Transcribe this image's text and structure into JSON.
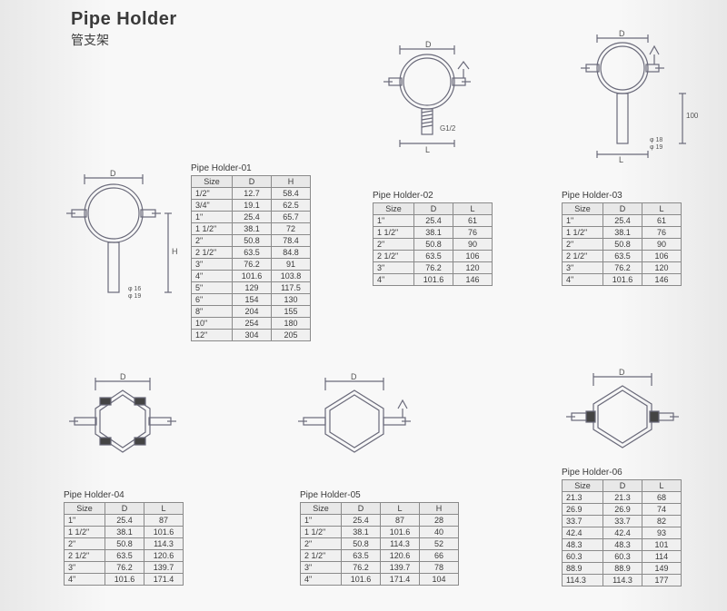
{
  "title_en": "Pipe Holder",
  "title_cn": "管支架",
  "diagrams": {
    "d_top_mid": {
      "label_D": "D",
      "label_L": "L",
      "label_G": "G1/2"
    },
    "d_top_right": {
      "label_D": "D",
      "label_L": "L",
      "label_100": "100",
      "label_phi1": "φ 18",
      "label_phi2": "φ 19"
    },
    "d_left": {
      "label_D": "D",
      "label_H": "H",
      "label_phi1": "φ 16",
      "label_phi2": "φ 19"
    },
    "d_hex_left": {
      "label_D": "D"
    },
    "d_hex_mid": {
      "label_D": "D"
    },
    "d_hex_right": {
      "label_D": "D"
    }
  },
  "tables": {
    "t01": {
      "title": "Pipe Holder-01",
      "columns": [
        "Size",
        "D",
        "H"
      ],
      "rows": [
        [
          "1/2\"",
          "12.7",
          "58.4"
        ],
        [
          "3/4\"",
          "19.1",
          "62.5"
        ],
        [
          "1\"",
          "25.4",
          "65.7"
        ],
        [
          "1 1/2\"",
          "38.1",
          "72"
        ],
        [
          "2\"",
          "50.8",
          "78.4"
        ],
        [
          "2 1/2\"",
          "63.5",
          "84.8"
        ],
        [
          "3\"",
          "76.2",
          "91"
        ],
        [
          "4\"",
          "101.6",
          "103.8"
        ],
        [
          "5\"",
          "129",
          "117.5"
        ],
        [
          "6\"",
          "154",
          "130"
        ],
        [
          "8\"",
          "204",
          "155"
        ],
        [
          "10\"",
          "254",
          "180"
        ],
        [
          "12\"",
          "304",
          "205"
        ]
      ]
    },
    "t02": {
      "title": "Pipe Holder-02",
      "columns": [
        "Size",
        "D",
        "L"
      ],
      "rows": [
        [
          "1\"",
          "25.4",
          "61"
        ],
        [
          "1 1/2\"",
          "38.1",
          "76"
        ],
        [
          "2\"",
          "50.8",
          "90"
        ],
        [
          "2 1/2\"",
          "63.5",
          "106"
        ],
        [
          "3\"",
          "76.2",
          "120"
        ],
        [
          "4\"",
          "101.6",
          "146"
        ]
      ]
    },
    "t03": {
      "title": "Pipe Holder-03",
      "columns": [
        "Size",
        "D",
        "L"
      ],
      "rows": [
        [
          "1\"",
          "25.4",
          "61"
        ],
        [
          "1 1/2\"",
          "38.1",
          "76"
        ],
        [
          "2\"",
          "50.8",
          "90"
        ],
        [
          "2 1/2\"",
          "63.5",
          "106"
        ],
        [
          "3\"",
          "76.2",
          "120"
        ],
        [
          "4\"",
          "101.6",
          "146"
        ]
      ]
    },
    "t04": {
      "title": "Pipe Holder-04",
      "columns": [
        "Size",
        "D",
        "L"
      ],
      "rows": [
        [
          "1\"",
          "25.4",
          "87"
        ],
        [
          "1 1/2\"",
          "38.1",
          "101.6"
        ],
        [
          "2\"",
          "50.8",
          "114.3"
        ],
        [
          "2 1/2\"",
          "63.5",
          "120.6"
        ],
        [
          "3\"",
          "76.2",
          "139.7"
        ],
        [
          "4\"",
          "101.6",
          "171.4"
        ]
      ]
    },
    "t05": {
      "title": "Pipe Holder-05",
      "columns": [
        "Size",
        "D",
        "L",
        "H"
      ],
      "rows": [
        [
          "1\"",
          "25.4",
          "87",
          "28"
        ],
        [
          "1 1/2\"",
          "38.1",
          "101.6",
          "40"
        ],
        [
          "2\"",
          "50.8",
          "114.3",
          "52"
        ],
        [
          "2 1/2\"",
          "63.5",
          "120.6",
          "66"
        ],
        [
          "3\"",
          "76.2",
          "139.7",
          "78"
        ],
        [
          "4\"",
          "101.6",
          "171.4",
          "104"
        ]
      ]
    },
    "t06": {
      "title": "Pipe Holder-06",
      "columns": [
        "Size",
        "D",
        "L"
      ],
      "rows": [
        [
          "21.3",
          "21.3",
          "68"
        ],
        [
          "26.9",
          "26.9",
          "74"
        ],
        [
          "33.7",
          "33.7",
          "82"
        ],
        [
          "42.4",
          "42.4",
          "93"
        ],
        [
          "48.3",
          "48.3",
          "101"
        ],
        [
          "60.3",
          "60.3",
          "114"
        ],
        [
          "88.9",
          "88.9",
          "149"
        ],
        [
          "114.3",
          "114.3",
          "177"
        ]
      ]
    }
  }
}
